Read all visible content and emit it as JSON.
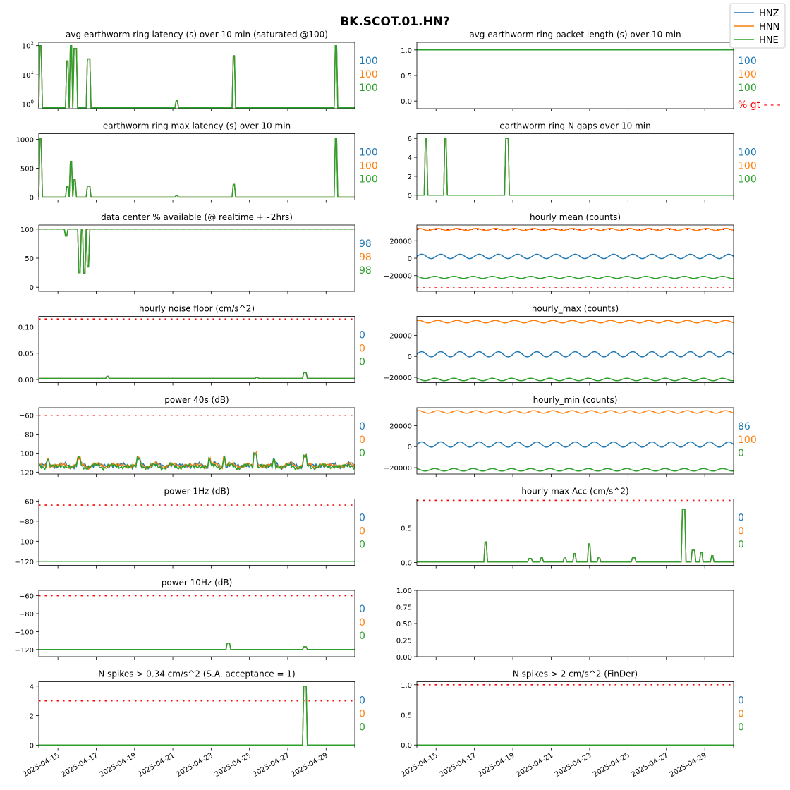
{
  "figure": {
    "title": "BK.SCOT.01.HN?",
    "colors": {
      "HNZ": "#1f77b4",
      "HNN": "#ff7f0e",
      "HNE": "#2ca02c",
      "threshold": "#ff0000"
    },
    "legend": {
      "placement": "top-right",
      "entries": [
        "HNZ",
        "HNN",
        "HNE"
      ]
    }
  },
  "chart_data": [
    {
      "id": "p0",
      "type": "line",
      "title": "avg earthworm ring latency (s)   over 10 min (saturated @100)",
      "yscale": "log",
      "ylim": [
        0.7,
        130
      ],
      "yticks": [
        1,
        10,
        100
      ],
      "yticklabels": [
        "10^0",
        "10^1",
        "10^2"
      ],
      "side_values": [
        "100",
        "100",
        "100"
      ],
      "spikes": [
        {
          "day": 0.1,
          "value": 100
        },
        {
          "day": 1.5,
          "value": 30
        },
        {
          "day": 1.7,
          "value": 100
        },
        {
          "day": 1.9,
          "value": 80
        },
        {
          "day": 2.6,
          "value": 35
        },
        {
          "day": 7.2,
          "value": 1.3
        },
        {
          "day": 10.2,
          "value": 45
        },
        {
          "day": 15.5,
          "value": 100
        }
      ],
      "series": [
        {
          "name": "HNZ",
          "baseline": 0.75
        },
        {
          "name": "HNN",
          "baseline": 0.75
        },
        {
          "name": "HNE",
          "baseline": 0.75
        }
      ]
    },
    {
      "id": "p1",
      "type": "line",
      "title": "avg earthworm ring packet length (s)   over 10 min",
      "ylim": [
        -0.15,
        1.15
      ],
      "yticks": [
        0.0,
        0.5,
        1.0
      ],
      "yticklabels": [
        "0.0",
        "0.5",
        "1.0"
      ],
      "side_values": [
        "100",
        "100",
        "100"
      ],
      "gt_label": "% gt - - -",
      "series": [
        {
          "name": "HNZ",
          "baseline": 1.0
        },
        {
          "name": "HNN",
          "baseline": 1.0
        },
        {
          "name": "HNE",
          "baseline": 1.0
        }
      ]
    },
    {
      "id": "p2",
      "type": "line",
      "title": "earthworm ring max latency (s)   over 10 min",
      "ylim": [
        -50,
        1100
      ],
      "yticks": [
        0,
        500,
        1000
      ],
      "yticklabels": [
        "0",
        "500",
        "1000"
      ],
      "side_values": [
        "100",
        "100",
        "100"
      ],
      "spikes": [
        {
          "day": 0.1,
          "value": 1020
        },
        {
          "day": 1.5,
          "value": 180
        },
        {
          "day": 1.7,
          "value": 620
        },
        {
          "day": 1.85,
          "value": 300
        },
        {
          "day": 2.6,
          "value": 190
        },
        {
          "day": 7.2,
          "value": 25
        },
        {
          "day": 10.2,
          "value": 220
        },
        {
          "day": 15.5,
          "value": 1020
        }
      ],
      "series": [
        {
          "name": "HNZ",
          "baseline": 0
        },
        {
          "name": "HNN",
          "baseline": 0
        },
        {
          "name": "HNE",
          "baseline": 0
        }
      ]
    },
    {
      "id": "p3",
      "type": "line",
      "title": "earthworm ring N gaps   over 10 min",
      "ylim": [
        -0.5,
        6.5
      ],
      "yticks": [
        0,
        2,
        4,
        6
      ],
      "yticklabels": [
        "0",
        "2",
        "4",
        "6"
      ],
      "side_values": [
        "100",
        "100",
        "100"
      ],
      "spikes": [
        {
          "day": 0.5,
          "value": 6
        },
        {
          "day": 1.5,
          "value": 6
        },
        {
          "day": 4.7,
          "value": 6
        }
      ],
      "series": [
        {
          "name": "HNZ",
          "baseline": 0
        },
        {
          "name": "HNN",
          "baseline": 0
        },
        {
          "name": "HNE",
          "baseline": 0
        }
      ]
    },
    {
      "id": "p4",
      "type": "line",
      "title": "data center % available (@ realtime +~2hrs)",
      "ylim": [
        -7,
        107
      ],
      "yticks": [
        0,
        50,
        100
      ],
      "yticklabels": [
        "0",
        "50",
        "100"
      ],
      "side_values": [
        "98",
        "98",
        "98"
      ],
      "threshold": 100,
      "dips": [
        {
          "day": 1.45,
          "value": 88
        },
        {
          "day": 2.15,
          "value": 25
        },
        {
          "day": 2.4,
          "value": 24
        },
        {
          "day": 2.55,
          "value": 35
        }
      ],
      "series": [
        {
          "name": "HNZ",
          "baseline": 100
        },
        {
          "name": "HNN",
          "baseline": 100
        },
        {
          "name": "HNE",
          "baseline": 100
        }
      ]
    },
    {
      "id": "p5",
      "type": "line",
      "title": "hourly mean (counts)",
      "ylim": [
        -38000,
        38000
      ],
      "yticks": [
        -20000,
        0,
        20000
      ],
      "yticklabels": [
        "−20000",
        "0",
        "20000"
      ],
      "side_values": [
        "",
        "",
        ""
      ],
      "thresholds": [
        -34000,
        33000
      ],
      "series": [
        {
          "name": "HNZ",
          "baseline": 2000,
          "amp": 2500
        },
        {
          "name": "HNN",
          "baseline": 33000,
          "amp": 1200
        },
        {
          "name": "HNE",
          "baseline": -22000,
          "amp": 1200
        }
      ]
    },
    {
      "id": "p6",
      "type": "line",
      "title": "hourly noise floor (cm/s^2)",
      "ylim": [
        -0.006,
        0.12
      ],
      "yticks": [
        0.0,
        0.05,
        0.1
      ],
      "yticklabels": [
        "0.00",
        "0.05",
        "0.10"
      ],
      "side_values": [
        "0",
        "0",
        "0"
      ],
      "threshold": 0.115,
      "spikes": [
        {
          "day": 3.6,
          "value": 0.006
        },
        {
          "day": 11.4,
          "value": 0.004
        },
        {
          "day": 13.9,
          "value": 0.013
        }
      ],
      "series": [
        {
          "name": "HNZ",
          "baseline": 0.002
        },
        {
          "name": "HNN",
          "baseline": 0.002
        },
        {
          "name": "HNE",
          "baseline": 0.002
        }
      ]
    },
    {
      "id": "p7",
      "type": "line",
      "title": "hourly_max (counts)",
      "ylim": [
        -25000,
        38000
      ],
      "yticks": [
        -20000,
        0,
        20000
      ],
      "yticklabels": [
        "−20000",
        "0",
        "20000"
      ],
      "side_values": [
        "",
        "",
        ""
      ],
      "series": [
        {
          "name": "HNZ",
          "baseline": 2000,
          "amp": 2500
        },
        {
          "name": "HNN",
          "baseline": 33000,
          "amp": 1200
        },
        {
          "name": "HNE",
          "baseline": -22000,
          "amp": 1200
        }
      ]
    },
    {
      "id": "p8",
      "type": "line",
      "title": "power 40s (dB)",
      "ylim": [
        -122,
        -52
      ],
      "yticks": [
        -120,
        -100,
        -80,
        -60
      ],
      "yticklabels": [
        "−120",
        "−100",
        "−80",
        "−60"
      ],
      "side_values": [
        "0",
        "0",
        "0"
      ],
      "threshold": -60,
      "spikes": [
        {
          "day": 0.5,
          "value": -107
        },
        {
          "day": 2.1,
          "value": -106
        },
        {
          "day": 5.2,
          "value": -106
        },
        {
          "day": 8.9,
          "value": -106
        },
        {
          "day": 9.7,
          "value": -105
        },
        {
          "day": 11.3,
          "value": -100
        },
        {
          "day": 12.3,
          "value": -108
        },
        {
          "day": 13.9,
          "value": -104
        }
      ],
      "series": [
        {
          "name": "HNZ",
          "baseline": -113,
          "amp": 1.5
        },
        {
          "name": "HNN",
          "baseline": -113,
          "amp": 1.5
        },
        {
          "name": "HNE",
          "baseline": -114,
          "amp": 1.5
        }
      ]
    },
    {
      "id": "p9",
      "type": "line",
      "title": "hourly_min (counts)",
      "ylim": [
        -26000,
        37000
      ],
      "yticks": [
        -20000,
        0,
        20000
      ],
      "yticklabels": [
        "−20000",
        "0",
        "20000"
      ],
      "side_values": [
        "86",
        "100",
        "0"
      ],
      "series": [
        {
          "name": "HNZ",
          "baseline": 2000,
          "amp": 2500
        },
        {
          "name": "HNN",
          "baseline": 33000,
          "amp": 1200
        },
        {
          "name": "HNE",
          "baseline": -22000,
          "amp": 1200
        }
      ]
    },
    {
      "id": "p10",
      "type": "line",
      "title": "power 1Hz (dB)",
      "ylim": [
        -124,
        -58
      ],
      "yticks": [
        -120,
        -100,
        -80,
        -60
      ],
      "yticklabels": [
        "−120",
        "−100",
        "−80",
        "−60"
      ],
      "side_values": [
        "0",
        "0",
        "0"
      ],
      "threshold": -64,
      "series": [
        {
          "name": "HNZ",
          "baseline": -120
        },
        {
          "name": "HNN",
          "baseline": -120
        },
        {
          "name": "HNE",
          "baseline": -120
        }
      ]
    },
    {
      "id": "p11",
      "type": "line",
      "title": "hourly max Acc (cm/s^2)",
      "ylim": [
        -0.04,
        0.92
      ],
      "yticks": [
        0.0,
        0.5
      ],
      "yticklabels": [
        "0.0",
        "0.5"
      ],
      "side_values": [
        "0",
        "0",
        "0"
      ],
      "threshold": 0.9,
      "spikes": [
        {
          "day": 3.6,
          "value": 0.3
        },
        {
          "day": 5.9,
          "value": 0.06
        },
        {
          "day": 6.5,
          "value": 0.07
        },
        {
          "day": 7.7,
          "value": 0.08
        },
        {
          "day": 8.2,
          "value": 0.13
        },
        {
          "day": 9.0,
          "value": 0.27
        },
        {
          "day": 9.5,
          "value": 0.08
        },
        {
          "day": 11.3,
          "value": 0.07
        },
        {
          "day": 13.9,
          "value": 0.77
        },
        {
          "day": 14.4,
          "value": 0.18
        },
        {
          "day": 14.8,
          "value": 0.15
        },
        {
          "day": 15.4,
          "value": 0.1
        }
      ],
      "series": [
        {
          "name": "HNZ",
          "baseline": 0.01
        },
        {
          "name": "HNN",
          "baseline": 0.01
        },
        {
          "name": "HNE",
          "baseline": 0.01
        }
      ]
    },
    {
      "id": "p12",
      "type": "line",
      "title": "power 10Hz (dB)",
      "ylim": [
        -128,
        -54
      ],
      "yticks": [
        -120,
        -100,
        -80,
        -60
      ],
      "yticklabels": [
        "−120",
        "−100",
        "−80",
        "−60"
      ],
      "side_values": [
        "0",
        "0",
        "0"
      ],
      "threshold": -60,
      "spikes": [
        {
          "day": 9.9,
          "value": -113
        },
        {
          "day": 13.9,
          "value": -117
        }
      ],
      "series": [
        {
          "name": "HNZ",
          "baseline": -120
        },
        {
          "name": "HNN",
          "baseline": -120
        },
        {
          "name": "HNE",
          "baseline": -120
        }
      ]
    },
    {
      "id": "p13",
      "type": "line",
      "title": "",
      "ylim": [
        0.0,
        1.0
      ],
      "yticks": [
        0.0,
        0.25,
        0.5,
        0.75,
        1.0
      ],
      "yticklabels": [
        "0.00",
        "0.25",
        "0.50",
        "0.75",
        "1.00"
      ],
      "side_values": [
        "",
        "",
        ""
      ],
      "series": []
    },
    {
      "id": "p14",
      "type": "line",
      "title": "N spikes > 0.34 cm/s^2 (S.A. acceptance = 1)",
      "ylim": [
        -0.2,
        4.3
      ],
      "yticks": [
        0,
        2,
        4
      ],
      "yticklabels": [
        "0",
        "2",
        "4"
      ],
      "side_values": [
        "0",
        "0",
        "0"
      ],
      "threshold": 3,
      "spikes": [
        {
          "day": 13.9,
          "value": 4
        }
      ],
      "series": [
        {
          "name": "HNZ",
          "baseline": 0
        },
        {
          "name": "HNN",
          "baseline": 0
        },
        {
          "name": "HNE",
          "baseline": 0
        }
      ]
    },
    {
      "id": "p15",
      "type": "line",
      "title": "N spikes > 2 cm/s^2 (FinDer)",
      "ylim": [
        -0.05,
        1.05
      ],
      "yticks": [
        0.0,
        0.5,
        1.0
      ],
      "yticklabels": [
        "0.0",
        "0.5",
        "1.0"
      ],
      "side_values": [
        "0",
        "0",
        "0"
      ],
      "threshold": 1.0,
      "series": [
        {
          "name": "HNZ",
          "baseline": 0
        },
        {
          "name": "HNN",
          "baseline": 0
        },
        {
          "name": "HNE",
          "baseline": 0
        }
      ]
    }
  ],
  "x_axis": {
    "start": "2025-04-14",
    "end": "2025-04-30",
    "ticks": [
      {
        "day": 1,
        "label": "2025-04-15"
      },
      {
        "day": 3,
        "label": "2025-04-17"
      },
      {
        "day": 5,
        "label": "2025-04-19"
      },
      {
        "day": 7,
        "label": "2025-04-21"
      },
      {
        "day": 9,
        "label": "2025-04-23"
      },
      {
        "day": 11,
        "label": "2025-04-25"
      },
      {
        "day": 13,
        "label": "2025-04-27"
      },
      {
        "day": 15,
        "label": "2025-04-29"
      }
    ]
  }
}
